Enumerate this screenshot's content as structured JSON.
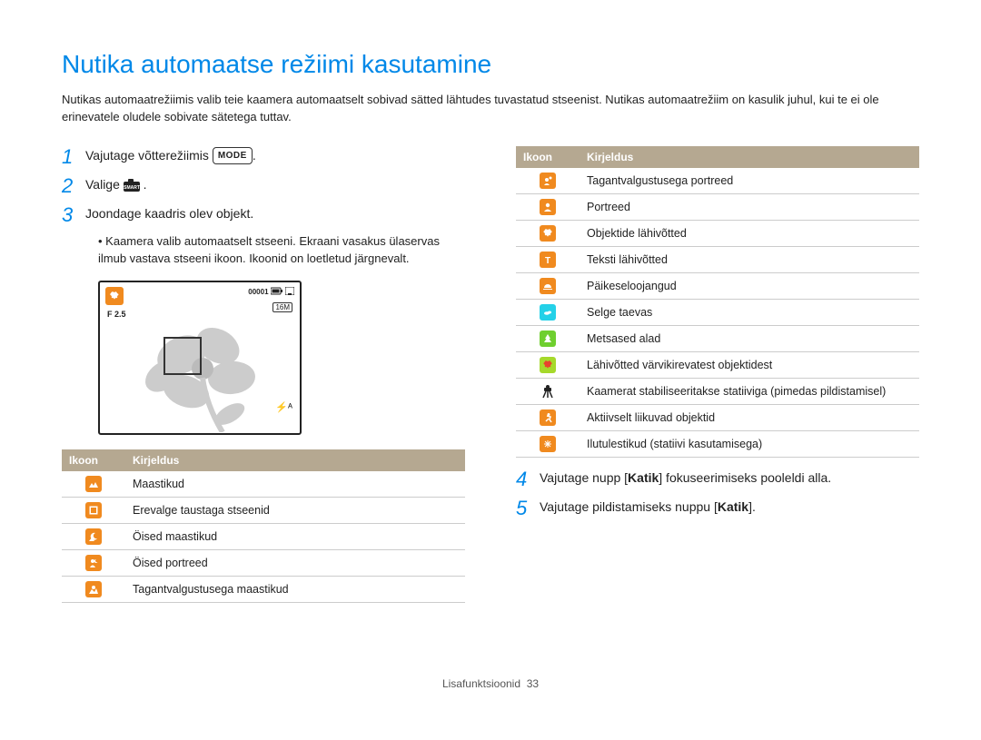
{
  "title": "Nutika automaatse režiimi kasutamine",
  "intro": "Nutikas automaatrežiimis valib teie kaamera automaatselt sobivad sätted lähtudes tuvastatud stseenist. Nutikas automaatrežiim on kasulik juhul, kui te ei ole erinevatele oludele sobivate sätetega tuttav.",
  "steps": {
    "s1_pre": "Vajutage võtterežiimis ",
    "s1_badge": "MODE",
    "s1_post": ".",
    "s2_pre": "Valige ",
    "s2_post": " .",
    "s3": "Joondage kaadris olev objekt.",
    "s3_sub": "Kaamera valib automaatselt stseeni. Ekraani vasakus ülaservas ilmub vastava stseeni ikoon. Ikoonid on loetletud järgnevalt.",
    "s4_pre": "Vajutage nupp [",
    "s4_bold": "Katik",
    "s4_post": "] fokuseerimiseks pooleldi alla.",
    "s5_pre": "Vajutage pildistamiseks nuppu [",
    "s5_bold": "Katik",
    "s5_post": "]."
  },
  "camera": {
    "counter": "00001",
    "f": "F 2.5",
    "res": "16M",
    "flash": "⚡ᴬ"
  },
  "table_headers": {
    "icon": "Ikoon",
    "desc": "Kirjeldus"
  },
  "left_rows": [
    {
      "bg": "#f08a1f",
      "svg": "landscape",
      "desc": "Maastikud"
    },
    {
      "bg": "#f08a1f",
      "svg": "white-frame",
      "desc": "Erevalge taustaga stseenid"
    },
    {
      "bg": "#f08a1f",
      "svg": "night-land",
      "desc": "Öised maastikud"
    },
    {
      "bg": "#f08a1f",
      "svg": "night-portrait",
      "desc": "Öised portreed"
    },
    {
      "bg": "#f08a1f",
      "svg": "backlit-land",
      "desc": "Tagantvalgustusega maastikud"
    }
  ],
  "right_rows": [
    {
      "bg": "#f08a1f",
      "svg": "backlit-portrait",
      "desc": "Tagantvalgustusega portreed"
    },
    {
      "bg": "#f08a1f",
      "svg": "portrait",
      "desc": "Portreed"
    },
    {
      "bg": "#f08a1f",
      "svg": "macro",
      "desc": "Objektide lähivõtted"
    },
    {
      "bg": "#f08a1f",
      "svg": "text",
      "desc": "Teksti lähivõtted"
    },
    {
      "bg": "#f08a1f",
      "svg": "sunset",
      "desc": "Päikeseloojangud"
    },
    {
      "bg": "#24d1e8",
      "svg": "sky",
      "desc": "Selge taevas"
    },
    {
      "bg": "#6fcf2f",
      "svg": "forest",
      "desc": "Metsased alad"
    },
    {
      "bg": "#a6d92b",
      "svg": "color-macro",
      "desc": "Lähivõtted värvikirevatest objektidest"
    },
    {
      "bg": "transparent",
      "svg": "tripod",
      "desc": "Kaamerat stabiliseeritakse statiiviga (pimedas pildistamisel)"
    },
    {
      "bg": "#f08a1f",
      "svg": "action",
      "desc": "Aktiivselt liikuvad objektid"
    },
    {
      "bg": "#f08a1f",
      "svg": "fireworks",
      "desc": "Ilutulestikud (statiivi kasutamisega)"
    }
  ],
  "footer": {
    "label": "Lisafunktsioonid",
    "page": "33"
  },
  "colors": {
    "heading": "#0088e8",
    "table_header_bg": "#b5a891",
    "icon_orange": "#f08a1f"
  }
}
